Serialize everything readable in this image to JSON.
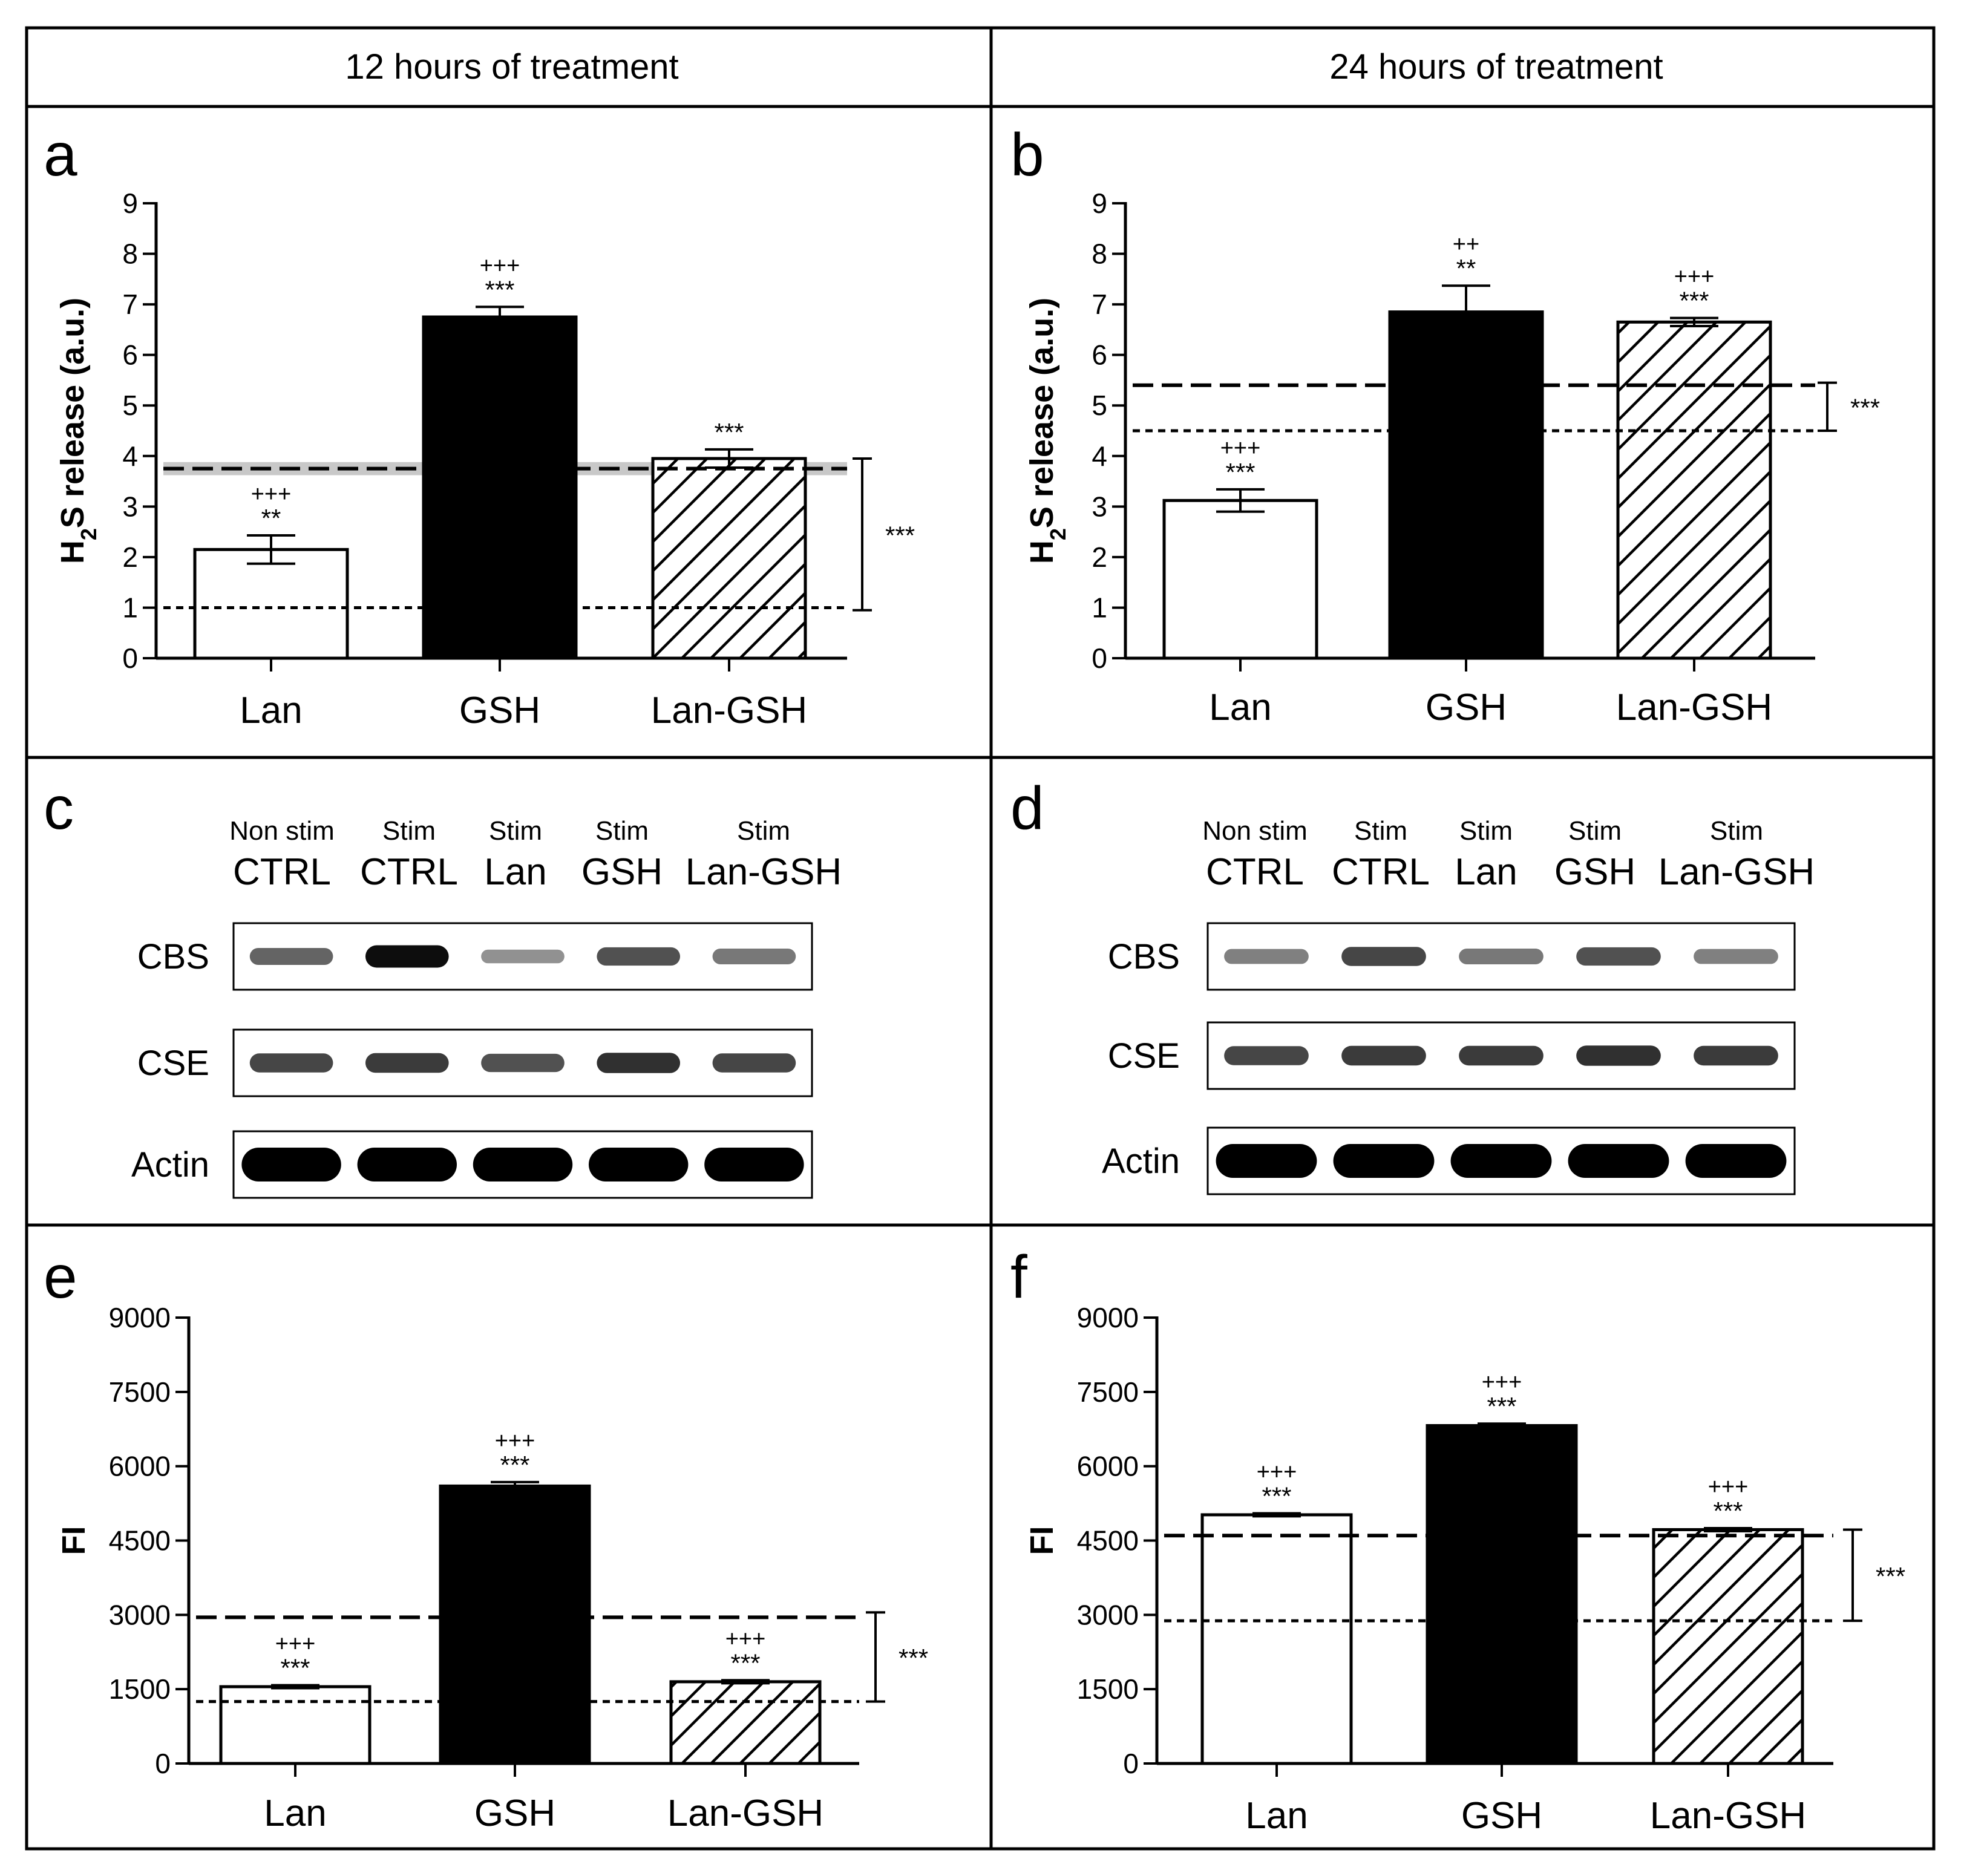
{
  "headers": [
    "12 hours of treatment",
    "24 hours of treatment"
  ],
  "colors": {
    "lan_fill": "#ffffff",
    "gsh_fill": "#000000",
    "lan_gsh_fill": "hatched",
    "grey_band": "#c8c8c8"
  },
  "chart_data": [
    {
      "panel": "a",
      "type": "bar",
      "ylabel_main": "H",
      "ylabel_sub": "2",
      "ylabel_rest": "S release (a.u.)",
      "ylim": [
        0,
        9
      ],
      "yticks": [
        "0",
        "1",
        "2",
        "3",
        "4",
        "5",
        "6",
        "7",
        "8",
        "9"
      ],
      "categories": [
        "Lan",
        "GSH",
        "Lan-GSH"
      ],
      "values": [
        2.15,
        6.75,
        3.95
      ],
      "errors": [
        0.28,
        0.2,
        0.18
      ],
      "fills": [
        "white",
        "black",
        "hatch"
      ],
      "significance": [
        {
          "plus": "+++",
          "stars": "**"
        },
        {
          "plus": "+++",
          "stars": "***"
        },
        {
          "plus": "",
          "stars": "***"
        }
      ],
      "ref_dashed": 3.75,
      "ref_dashed_band": [
        3.62,
        3.88
      ],
      "ref_dotted": 1.0,
      "bracket": {
        "from": 0.95,
        "to": 3.95,
        "label": "***"
      }
    },
    {
      "panel": "b",
      "type": "bar",
      "ylabel_main": "H",
      "ylabel_sub": "2",
      "ylabel_rest": "S release (a.u.)",
      "ylim": [
        0,
        9
      ],
      "yticks": [
        "0",
        "1",
        "2",
        "3",
        "4",
        "5",
        "6",
        "7",
        "8",
        "9"
      ],
      "categories": [
        "Lan",
        "GSH",
        "Lan-GSH"
      ],
      "values": [
        3.12,
        6.85,
        6.65
      ],
      "errors": [
        0.22,
        0.52,
        0.08
      ],
      "fills": [
        "white",
        "black",
        "hatch"
      ],
      "significance": [
        {
          "plus": "+++",
          "stars": "***"
        },
        {
          "plus": "++",
          "stars": "**"
        },
        {
          "plus": "+++",
          "stars": "***"
        }
      ],
      "ref_dashed": 5.4,
      "ref_dotted": 4.5,
      "bracket": {
        "from": 4.5,
        "to": 5.45,
        "label": "***"
      }
    },
    {
      "panel": "e",
      "type": "bar",
      "ylabel": "FI",
      "ylim": [
        0,
        9000
      ],
      "yticks": [
        "0",
        "1500",
        "3000",
        "4500",
        "6000",
        "7500",
        "9000"
      ],
      "categories": [
        "Lan",
        "GSH",
        "Lan-GSH"
      ],
      "values": [
        1550,
        5600,
        1650
      ],
      "errors": [
        30,
        80,
        30
      ],
      "fills": [
        "white",
        "black",
        "hatch"
      ],
      "significance": [
        {
          "plus": "+++",
          "stars": "***"
        },
        {
          "plus": "+++",
          "stars": "***"
        },
        {
          "plus": "+++",
          "stars": "***"
        }
      ],
      "ref_dashed": 2950,
      "ref_dotted": 1250,
      "bracket": {
        "from": 1250,
        "to": 3050,
        "label": "***"
      }
    },
    {
      "panel": "f",
      "type": "bar",
      "ylabel": "FI",
      "ylim": [
        0,
        9000
      ],
      "yticks": [
        "0",
        "1500",
        "3000",
        "4500",
        "6000",
        "7500",
        "9000"
      ],
      "categories": [
        "Lan",
        "GSH",
        "Lan-GSH"
      ],
      "values": [
        5020,
        6820,
        4720
      ],
      "errors": [
        30,
        40,
        30
      ],
      "fills": [
        "white",
        "black",
        "hatch"
      ],
      "significance": [
        {
          "plus": "+++",
          "stars": "***"
        },
        {
          "plus": "+++",
          "stars": "***"
        },
        {
          "plus": "+++",
          "stars": "***"
        }
      ],
      "ref_dashed": 4600,
      "ref_dotted": 2880,
      "bracket": {
        "from": 2880,
        "to": 4720,
        "label": "***"
      }
    }
  ],
  "blots": [
    {
      "panel": "c",
      "lanes": [
        {
          "top": "Non stim",
          "bottom": "CTRL"
        },
        {
          "top": "Stim",
          "bottom": "CTRL"
        },
        {
          "top": "Stim",
          "bottom": "Lan"
        },
        {
          "top": "Stim",
          "bottom": "GSH"
        },
        {
          "top": "Stim",
          "bottom": "Lan-GSH"
        }
      ],
      "rows": [
        {
          "protein": "CBS",
          "intensity": [
            0.55,
            0.95,
            0.3,
            0.65,
            0.45
          ]
        },
        {
          "protein": "CSE",
          "intensity": [
            0.7,
            0.75,
            0.65,
            0.8,
            0.7
          ]
        },
        {
          "protein": "Actin",
          "intensity": [
            1.0,
            1.0,
            1.0,
            1.0,
            1.0
          ]
        }
      ]
    },
    {
      "panel": "d",
      "lanes": [
        {
          "top": "Non stim",
          "bottom": "CTRL"
        },
        {
          "top": "Stim",
          "bottom": "CTRL"
        },
        {
          "top": "Stim",
          "bottom": "Lan"
        },
        {
          "top": "Stim",
          "bottom": "GSH"
        },
        {
          "top": "Stim",
          "bottom": "Lan-GSH"
        }
      ],
      "rows": [
        {
          "protein": "CBS",
          "intensity": [
            0.4,
            0.7,
            0.45,
            0.65,
            0.4
          ]
        },
        {
          "protein": "CSE",
          "intensity": [
            0.7,
            0.75,
            0.75,
            0.8,
            0.75
          ]
        },
        {
          "protein": "Actin",
          "intensity": [
            1.0,
            1.0,
            1.0,
            1.0,
            1.0
          ]
        }
      ]
    }
  ]
}
